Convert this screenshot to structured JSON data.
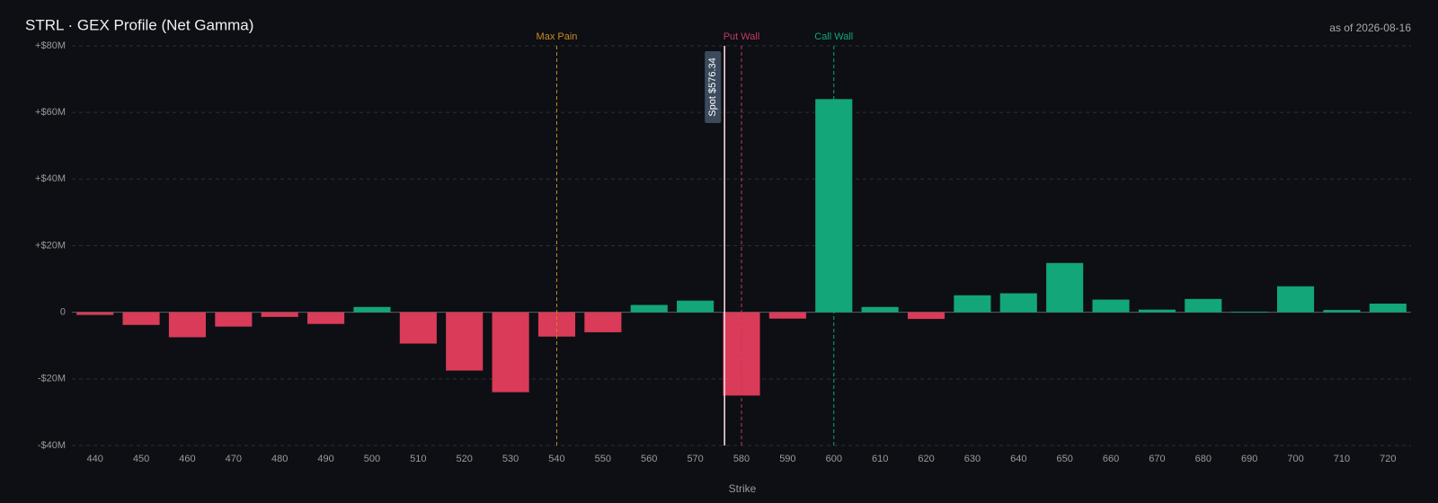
{
  "chart_data": {
    "type": "bar",
    "title": "STRL · GEX Profile (Net Gamma)",
    "subtitle": "as of 2026-08-16",
    "x_label": "Strike",
    "categories": [
      440,
      450,
      460,
      470,
      480,
      490,
      500,
      510,
      520,
      530,
      540,
      550,
      560,
      570,
      580,
      590,
      600,
      610,
      620,
      630,
      640,
      650,
      660,
      670,
      680,
      690,
      700,
      710,
      720
    ],
    "values": [
      -0.8,
      -3.8,
      -7.5,
      -4.3,
      -1.4,
      -3.5,
      1.6,
      -9.4,
      -17.5,
      -24,
      -7.3,
      -6,
      2.2,
      3.5,
      -25,
      -1.9,
      64,
      1.6,
      -2,
      5.1,
      5.7,
      14.8,
      3.8,
      0.8,
      4,
      0.2,
      7.8,
      0.7,
      2.6
    ],
    "positive_color": "#12a679",
    "negative_color": "#d93b58",
    "ylim": [
      -40,
      80
    ],
    "yticks": [
      {
        "value": -40,
        "label": "-$40M"
      },
      {
        "value": -20,
        "label": "-$20M"
      },
      0,
      {
        "value": 20,
        "label": "+$20M"
      },
      {
        "value": 40,
        "label": "+$40M"
      },
      {
        "value": 60,
        "label": "+$60M"
      },
      {
        "value": 80,
        "label": "+$80M"
      }
    ],
    "grid": true,
    "markers": [
      {
        "label": "Max Pain",
        "value": 540,
        "color": "#c98a22"
      },
      {
        "label": "Put Wall",
        "value": 580,
        "color": "#c23a5e"
      },
      {
        "label": "Call Wall",
        "value": 600,
        "color": "#12a679"
      }
    ],
    "spot": {
      "label": "Spot $576.34",
      "value": 576.34,
      "color": "#f3d6dc"
    }
  }
}
